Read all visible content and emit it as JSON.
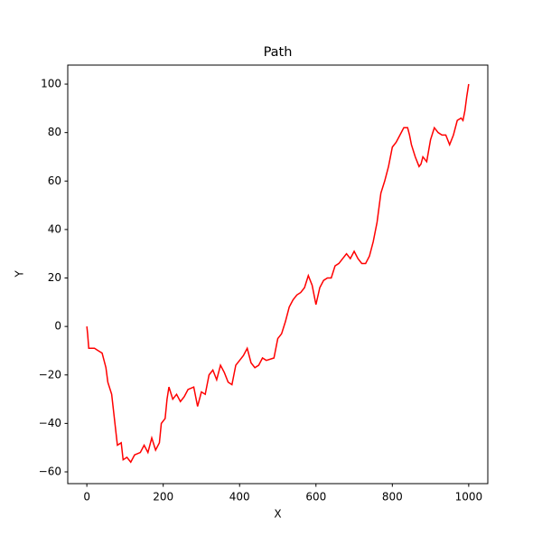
{
  "chart_data": {
    "type": "line",
    "title": "Path",
    "xlabel": "X",
    "ylabel": "Y",
    "color": "#ff0000",
    "x": [
      0,
      2,
      5,
      20,
      30,
      40,
      50,
      55,
      65,
      70,
      75,
      80,
      90,
      95,
      105,
      115,
      125,
      140,
      150,
      160,
      170,
      180,
      190,
      195,
      205,
      210,
      215,
      225,
      235,
      245,
      255,
      265,
      280,
      290,
      300,
      310,
      320,
      330,
      340,
      350,
      360,
      370,
      380,
      390,
      400,
      410,
      420,
      430,
      440,
      450,
      460,
      470,
      490,
      500,
      510,
      520,
      530,
      540,
      550,
      560,
      570,
      580,
      590,
      600,
      610,
      620,
      630,
      640,
      650,
      660,
      670,
      680,
      690,
      700,
      710,
      720,
      730,
      740,
      750,
      760,
      770,
      780,
      790,
      800,
      810,
      820,
      830,
      840,
      845,
      850,
      860,
      870,
      875,
      880,
      890,
      900,
      910,
      920,
      930,
      940,
      950,
      960,
      970,
      980,
      985,
      990,
      995,
      1000
    ],
    "values": [
      0,
      -3,
      -9,
      -9,
      -10,
      -11,
      -17,
      -23,
      -28,
      -35,
      -42,
      -49,
      -48,
      -55,
      -54,
      -56,
      -53,
      -52,
      -49,
      -52,
      -46,
      -51,
      -48,
      -40,
      -38,
      -30,
      -25,
      -30,
      -28,
      -31,
      -29,
      -26,
      -25,
      -33,
      -27,
      -28,
      -20,
      -18,
      -22,
      -16,
      -19,
      -23,
      -24,
      -16,
      -14,
      -12,
      -9,
      -15,
      -17,
      -16,
      -13,
      -14,
      -13,
      -5,
      -3,
      2,
      8,
      11,
      13,
      14,
      16,
      21,
      17,
      9,
      16,
      19,
      20,
      20,
      25,
      26,
      28,
      30,
      28,
      31,
      28,
      26,
      26,
      29,
      35,
      43,
      55,
      60,
      66,
      74,
      76,
      79,
      82,
      82,
      79,
      75,
      70,
      66,
      67,
      70,
      68,
      77,
      82,
      80,
      79,
      79,
      75,
      79,
      85,
      86,
      85,
      89,
      95,
      100
    ],
    "xlim": [
      -50,
      1050
    ],
    "ylim": [
      -64.85,
      107.85
    ],
    "xticks": [
      0,
      200,
      400,
      600,
      800,
      1000
    ],
    "yticks": [
      {
        "value": -60,
        "label": "−60"
      },
      {
        "value": -40,
        "label": "−40"
      },
      {
        "value": -20,
        "label": "−20"
      },
      0,
      20,
      40,
      60,
      80,
      100
    ]
  }
}
